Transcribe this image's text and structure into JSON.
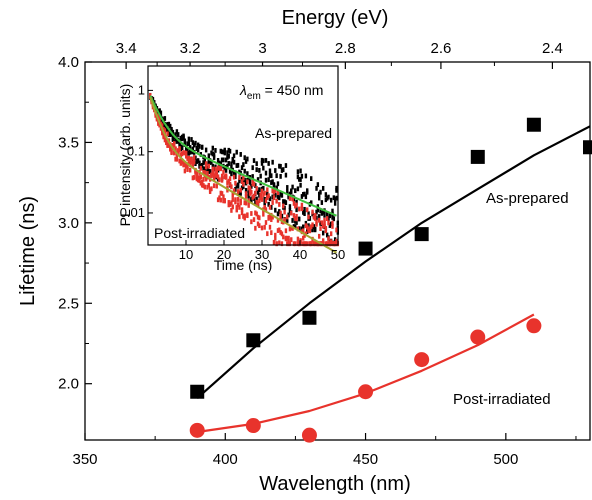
{
  "chart_data": {
    "type": "scatter",
    "xlabel": "Wavelength (nm)",
    "x2label": "Energy (eV)",
    "ylabel": "Lifetime (ns)",
    "xlim": [
      350,
      530
    ],
    "ylim": [
      1.65,
      4.0
    ],
    "x_ticks": [
      "350",
      "400",
      "450",
      "500"
    ],
    "y_ticks": [
      "2.0",
      "2.5",
      "3.0",
      "3.5",
      "4.0"
    ],
    "x2_ticks": [
      "3.4",
      "3.2",
      "3",
      "2.8",
      "2.6",
      "2.4"
    ],
    "series": [
      {
        "name": "As-prepared",
        "marker": "square",
        "color": "#000000",
        "x": [
          390,
          410,
          430,
          450,
          470,
          490,
          510,
          530
        ],
        "y": [
          1.95,
          2.27,
          2.41,
          2.84,
          2.93,
          3.41,
          3.61,
          3.47
        ],
        "fit_x": [
          390,
          410,
          430,
          450,
          470,
          490,
          510,
          530
        ],
        "fit_y": [
          1.91,
          2.22,
          2.5,
          2.76,
          3.0,
          3.21,
          3.42,
          3.6
        ]
      },
      {
        "name": "Post-irradiated",
        "marker": "circle",
        "color": "#e8332c",
        "x": [
          390,
          410,
          430,
          450,
          470,
          490,
          510
        ],
        "y": [
          1.71,
          1.74,
          1.68,
          1.95,
          2.15,
          2.29,
          2.36
        ],
        "fit_x": [
          390,
          410,
          430,
          450,
          470,
          490,
          510
        ],
        "fit_y": [
          1.7,
          1.75,
          1.83,
          1.94,
          2.08,
          2.24,
          2.43
        ]
      }
    ],
    "inset": {
      "annotation_symbol": "λ",
      "annotation_sub": "em",
      "annotation_value": " = 450 nm",
      "xlabel": "Time (ns)",
      "ylabel": "PL intensity (arb. units)",
      "x_ticks": [
        "10",
        "20",
        "30",
        "40",
        "50"
      ],
      "y_ticks": [
        "1",
        "0.1",
        "0.01"
      ],
      "xlim": [
        0,
        50
      ],
      "ylim_log": [
        0.003,
        2.5
      ],
      "series": [
        {
          "name": "As-prepared",
          "color": "#000000",
          "fit_color": "#3fbf3f",
          "amplitude": 1.0,
          "tau1": 2.5,
          "tau2": 16,
          "a1": 0.8
        },
        {
          "name": "Post-irradiated",
          "color": "#e8332c",
          "fit_color": "#a3a330",
          "amplitude": 1.0,
          "tau1": 2.0,
          "tau2": 12,
          "a1": 0.86
        }
      ]
    }
  }
}
